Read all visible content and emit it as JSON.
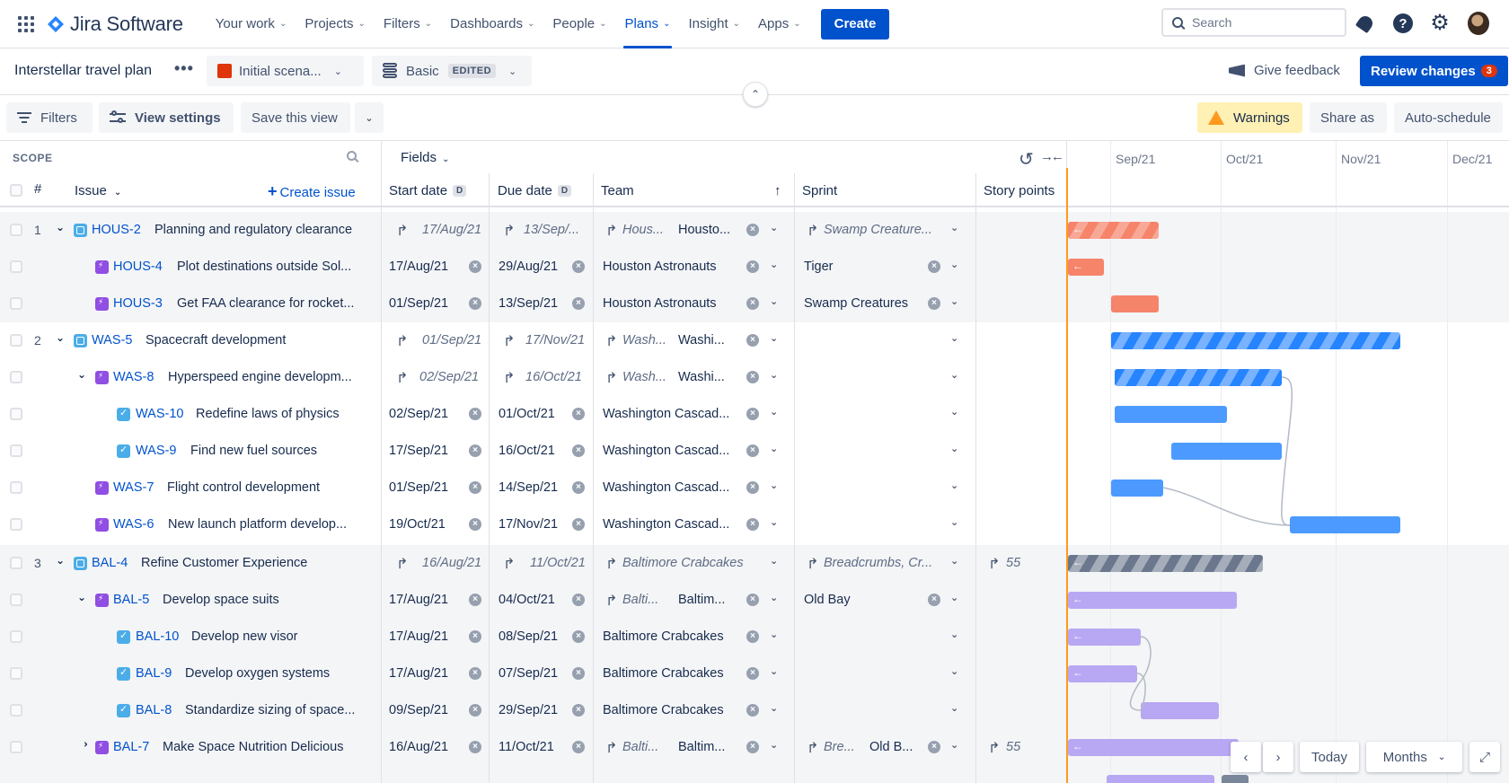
{
  "nav": {
    "product": "Jira Software",
    "items": [
      {
        "label": "Your work"
      },
      {
        "label": "Projects"
      },
      {
        "label": "Filters"
      },
      {
        "label": "Dashboards"
      },
      {
        "label": "People"
      },
      {
        "label": "Plans"
      },
      {
        "label": "Insight"
      },
      {
        "label": "Apps"
      }
    ],
    "active_item": "Plans",
    "create_label": "Create",
    "search_placeholder": "Search"
  },
  "plan": {
    "title": "Interstellar travel plan",
    "more_label": "•••",
    "scenario": "Initial scena...",
    "scenario_color": "#de350b",
    "view": "Basic",
    "view_badge": "EDITED",
    "feedback_label": "Give feedback",
    "review_label": "Review changes",
    "review_count": "3"
  },
  "toolbar": {
    "filters": "Filters",
    "view_settings": "View settings",
    "save_view": "Save this view",
    "warnings": "Warnings",
    "share": "Share as",
    "auto_schedule": "Auto-schedule"
  },
  "grid": {
    "scope_label": "SCOPE",
    "fields_label": "Fields",
    "months": [
      "Sep/21",
      "Oct/21",
      "Nov/21",
      "Dec/21"
    ],
    "columns": {
      "num": "#",
      "issue": "Issue",
      "create_issue": "Create issue",
      "start": "Start date",
      "due": "Due date",
      "date_badge": "D",
      "team": "Team",
      "sprint": "Sprint",
      "points": "Story points"
    }
  },
  "rows": [
    {
      "num": "1",
      "key": "HOUS-2",
      "title": "Planning and regulatory clearance",
      "start": "17/Aug/21",
      "due": "13/Sep/...",
      "team": "Hous...",
      "team2": "Housto...",
      "sprint": "Swamp Creature...",
      "points": ""
    },
    {
      "num": "",
      "key": "HOUS-4",
      "title": "Plot destinations outside Sol...",
      "start": "17/Aug/21",
      "due": "29/Aug/21",
      "team": "Houston Astronauts",
      "team2": "",
      "sprint": "Tiger",
      "points": ""
    },
    {
      "num": "",
      "key": "HOUS-3",
      "title": "Get FAA clearance for rocket...",
      "start": "01/Sep/21",
      "due": "13/Sep/21",
      "team": "Houston Astronauts",
      "team2": "",
      "sprint": "Swamp Creatures",
      "points": ""
    },
    {
      "num": "2",
      "key": "WAS-5",
      "title": "Spacecraft development",
      "start": "01/Sep/21",
      "due": "17/Nov/21",
      "team": "Wash...",
      "team2": "Washi...",
      "sprint": "",
      "points": ""
    },
    {
      "num": "",
      "key": "WAS-8",
      "title": "Hyperspeed engine developm...",
      "start": "02/Sep/21",
      "due": "16/Oct/21",
      "team": "Wash...",
      "team2": "Washi...",
      "sprint": "",
      "points": ""
    },
    {
      "num": "",
      "key": "WAS-10",
      "title": "Redefine laws of physics",
      "start": "02/Sep/21",
      "due": "01/Oct/21",
      "team": "Washington Cascad...",
      "team2": "",
      "sprint": "",
      "points": ""
    },
    {
      "num": "",
      "key": "WAS-9",
      "title": "Find new fuel sources",
      "start": "17/Sep/21",
      "due": "16/Oct/21",
      "team": "Washington Cascad...",
      "team2": "",
      "sprint": "",
      "points": ""
    },
    {
      "num": "",
      "key": "WAS-7",
      "title": "Flight control development",
      "start": "01/Sep/21",
      "due": "14/Sep/21",
      "team": "Washington Cascad...",
      "team2": "",
      "sprint": "",
      "points": ""
    },
    {
      "num": "",
      "key": "WAS-6",
      "title": "New launch platform develop...",
      "start": "19/Oct/21",
      "due": "17/Nov/21",
      "team": "Washington Cascad...",
      "team2": "",
      "sprint": "",
      "points": ""
    },
    {
      "num": "3",
      "key": "BAL-4",
      "title": "Refine Customer Experience",
      "start": "16/Aug/21",
      "due": "11/Oct/21",
      "team": "Baltimore Crabcakes",
      "team2": "",
      "sprint": "Breadcrumbs, Cr...",
      "points": "55"
    },
    {
      "num": "",
      "key": "BAL-5",
      "title": "Develop space suits",
      "start": "17/Aug/21",
      "due": "04/Oct/21",
      "team": "Balti...",
      "team2": "Baltim...",
      "sprint": "Old Bay",
      "points": ""
    },
    {
      "num": "",
      "key": "BAL-10",
      "title": "Develop new visor",
      "start": "17/Aug/21",
      "due": "08/Sep/21",
      "team": "Baltimore Crabcakes",
      "team2": "",
      "sprint": "",
      "points": ""
    },
    {
      "num": "",
      "key": "BAL-9",
      "title": "Develop oxygen systems",
      "start": "17/Aug/21",
      "due": "07/Sep/21",
      "team": "Baltimore Crabcakes",
      "team2": "",
      "sprint": "",
      "points": ""
    },
    {
      "num": "",
      "key": "BAL-8",
      "title": "Standardize sizing of space...",
      "start": "09/Sep/21",
      "due": "29/Sep/21",
      "team": "Baltimore Crabcakes",
      "team2": "",
      "sprint": "",
      "points": ""
    },
    {
      "num": "",
      "key": "BAL-7",
      "title": "Make Space Nutrition Delicious",
      "start": "16/Aug/21",
      "due": "11/Oct/21",
      "team": "Balti...",
      "team2": "Baltim...",
      "sprint": "Bre...",
      "sprint2": "Old B...",
      "points": "55"
    }
  ],
  "timeline_controls": {
    "today": "Today",
    "scale": "Months"
  },
  "colors": {
    "houston_bar": "#f5846a",
    "washington_bar": "#4c9aff",
    "baltimore_bar": "#b8a7f2",
    "initiative_bar": "#7a869a",
    "today_line": "#ff991f",
    "primary": "#0052cc"
  }
}
